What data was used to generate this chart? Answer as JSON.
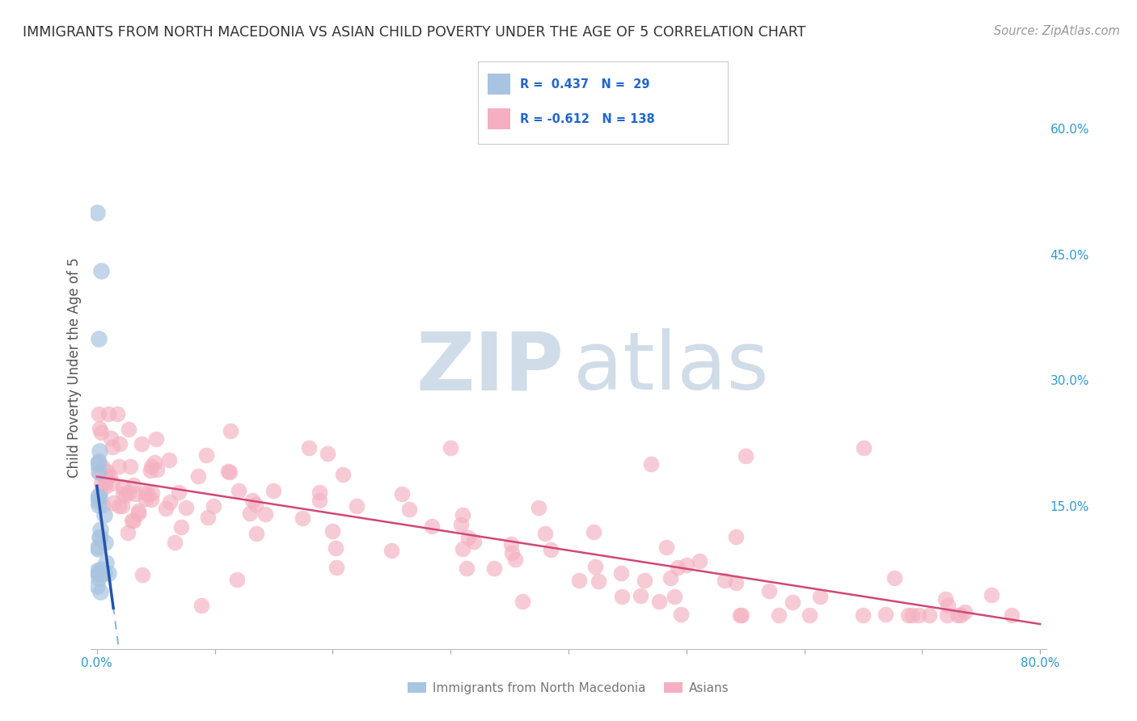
{
  "title": "IMMIGRANTS FROM NORTH MACEDONIA VS ASIAN CHILD POVERTY UNDER THE AGE OF 5 CORRELATION CHART",
  "source": "Source: ZipAtlas.com",
  "ylabel": "Child Poverty Under the Age of 5",
  "xlim": [
    -0.005,
    0.805
  ],
  "ylim": [
    -0.02,
    0.65
  ],
  "y_ticks": [
    0.15,
    0.3,
    0.45,
    0.6
  ],
  "y_tick_labels": [
    "15.0%",
    "30.0%",
    "45.0%",
    "60.0%"
  ],
  "x_ticks": [
    0.0,
    0.1,
    0.2,
    0.3,
    0.4,
    0.5,
    0.6,
    0.7,
    0.8
  ],
  "blue_color": "#a8c4e0",
  "blue_line_color": "#2255aa",
  "blue_dash_color": "#90b8d8",
  "pink_color": "#f4b0c0",
  "pink_line_color": "#d04878",
  "legend_text_color": "#2266cc",
  "axis_text_color": "#3399cc",
  "ylabel_color": "#555555",
  "watermark_zip": "ZIP",
  "watermark_atlas": "atlas",
  "watermark_color": "#d0dde8",
  "background_color": "#ffffff",
  "grid_color": "#d4dde8",
  "title_color": "#333333",
  "source_color": "#999999",
  "title_fontsize": 12.5,
  "R_blue": 0.437,
  "N_blue": 29,
  "R_pink": -0.612,
  "N_pink": 138
}
